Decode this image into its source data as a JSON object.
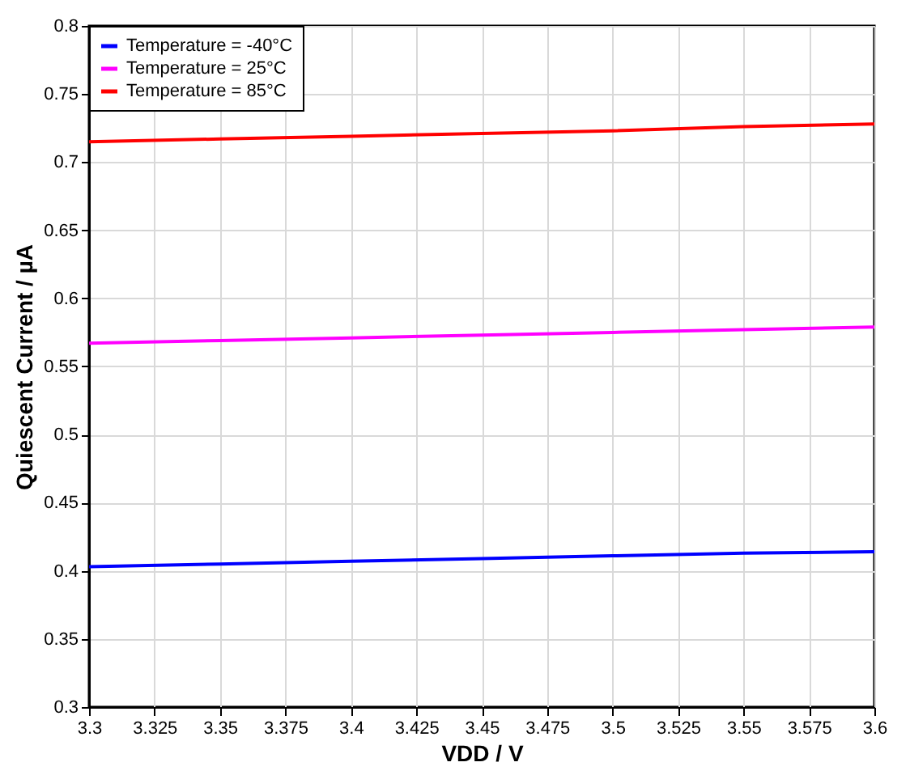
{
  "chart_data": {
    "type": "line",
    "xlabel": "VDD / V",
    "ylabel": "Quiescent Current / µA",
    "x": [
      3.3,
      3.35,
      3.4,
      3.45,
      3.5,
      3.55,
      3.6
    ],
    "series": [
      {
        "name": "Temperature = -40°C",
        "color": "#0000ff",
        "values": [
          0.403,
          0.405,
          0.407,
          0.409,
          0.411,
          0.413,
          0.414
        ]
      },
      {
        "name": "Temperature = 25°C",
        "color": "#ff00ff",
        "values": [
          0.567,
          0.569,
          0.571,
          0.573,
          0.575,
          0.577,
          0.579
        ]
      },
      {
        "name": "Temperature = 85°C",
        "color": "#ff0000",
        "values": [
          0.715,
          0.717,
          0.719,
          0.721,
          0.723,
          0.726,
          0.728
        ]
      }
    ],
    "xlim": [
      3.3,
      3.6
    ],
    "xticks": [
      3.3,
      3.325,
      3.35,
      3.375,
      3.4,
      3.425,
      3.45,
      3.475,
      3.5,
      3.525,
      3.55,
      3.575,
      3.6
    ],
    "ylim": [
      0.3,
      0.8
    ],
    "yticks": [
      0.3,
      0.35,
      0.4,
      0.45,
      0.5,
      0.55,
      0.6,
      0.65,
      0.7,
      0.75,
      0.8
    ],
    "grid": true,
    "legend": "top left",
    "marker": "none",
    "line_style": "solid"
  }
}
